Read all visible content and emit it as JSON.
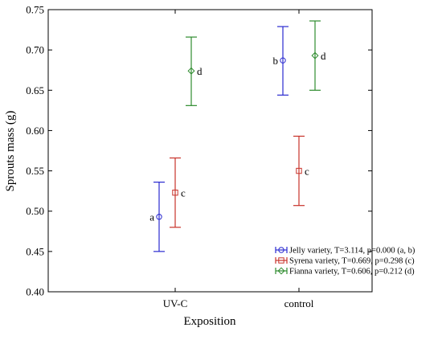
{
  "chart_data": {
    "type": "scatter",
    "subtype": "means-with-error-bars",
    "title": "",
    "xlabel": "Exposition",
    "ylabel": "Sprouts mass (g)",
    "categories": [
      "UV-C",
      "control"
    ],
    "ylim": [
      0.4,
      0.75
    ],
    "yticks": [
      "0.40",
      "0.45",
      "0.50",
      "0.55",
      "0.60",
      "0.65",
      "0.70",
      "0.75"
    ],
    "grid": false,
    "legend_position": "bottom-right",
    "series": [
      {
        "name": "Jelly variety, T=3.114, p=0.000 (a, b)",
        "color": "#2a2ad0",
        "marker": "circle",
        "points": [
          {
            "category": "UV-C",
            "mean": 0.493,
            "lower": 0.45,
            "upper": 0.536,
            "label": "a"
          },
          {
            "category": "control",
            "mean": 0.687,
            "lower": 0.644,
            "upper": 0.729,
            "label": "b"
          }
        ]
      },
      {
        "name": "Syrena variety, T=0.669, p=0.298 (c)",
        "color": "#c8322a",
        "marker": "square",
        "points": [
          {
            "category": "UV-C",
            "mean": 0.523,
            "lower": 0.48,
            "upper": 0.566,
            "label": "c"
          },
          {
            "category": "control",
            "mean": 0.55,
            "lower": 0.507,
            "upper": 0.593,
            "label": "c"
          }
        ]
      },
      {
        "name": "Fianna variety, T=0.606, p=0.212 (d)",
        "color": "#2e8b2e",
        "marker": "diamond",
        "points": [
          {
            "category": "UV-C",
            "mean": 0.674,
            "lower": 0.631,
            "upper": 0.716,
            "label": "d"
          },
          {
            "category": "control",
            "mean": 0.693,
            "lower": 0.65,
            "upper": 0.736,
            "label": "d"
          }
        ]
      }
    ]
  }
}
